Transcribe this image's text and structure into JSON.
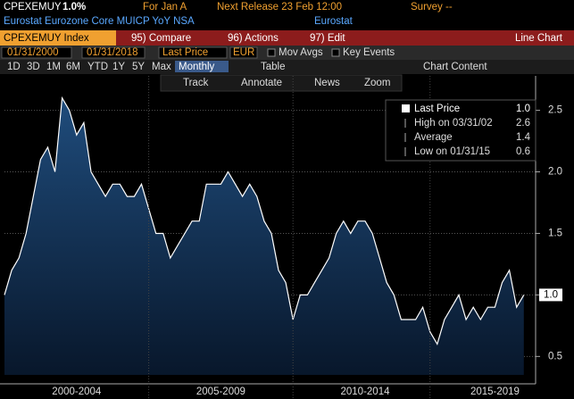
{
  "header": {
    "ticker": "CPEXEMUY",
    "value": "1.0%",
    "period": "For Jan A",
    "next_release": "Next Release 23 Feb 12:00",
    "survey": "Survey --",
    "description": "Eurostat Eurozone Core MUICP YoY NSA",
    "source": "Eurostat"
  },
  "menu": {
    "security": "CPEXEMUY Index",
    "compare": "95) Compare",
    "actions": "96) Actions",
    "edit": "97) Edit",
    "view": "Line Chart"
  },
  "controls": {
    "start": "01/31/2000",
    "end": "01/31/2018",
    "field": "Last Price",
    "currency": "EUR",
    "mov_avgs": "Mov Avgs",
    "key_events": "Key Events",
    "periods": [
      "1D",
      "3D",
      "1M",
      "6M",
      "YTD",
      "1Y",
      "5Y",
      "Max"
    ],
    "frequency": "Monthly",
    "table": "Table",
    "chart_content": "Chart Content"
  },
  "tools": [
    "Track",
    "Annotate",
    "News",
    "Zoom"
  ],
  "chart_data": {
    "type": "area",
    "x": [
      2000,
      2000.25,
      2000.5,
      2000.75,
      2001,
      2001.25,
      2001.5,
      2001.75,
      2002,
      2002.25,
      2002.5,
      2002.75,
      2003,
      2003.25,
      2003.5,
      2003.75,
      2004,
      2004.25,
      2004.5,
      2004.75,
      2005,
      2005.25,
      2005.5,
      2005.75,
      2006,
      2006.25,
      2006.5,
      2006.75,
      2007,
      2007.25,
      2007.5,
      2007.75,
      2008,
      2008.25,
      2008.5,
      2008.75,
      2009,
      2009.25,
      2009.5,
      2009.75,
      2010,
      2010.25,
      2010.5,
      2010.75,
      2011,
      2011.25,
      2011.5,
      2011.75,
      2012,
      2012.25,
      2012.5,
      2012.75,
      2013,
      2013.25,
      2013.5,
      2013.75,
      2014,
      2014.25,
      2014.5,
      2014.75,
      2015,
      2015.25,
      2015.5,
      2015.75,
      2016,
      2016.25,
      2016.5,
      2016.75,
      2017,
      2017.25,
      2017.5,
      2017.75,
      2018
    ],
    "series": [
      {
        "name": "Last Price",
        "color": "#ffffff",
        "values": [
          1.0,
          1.2,
          1.3,
          1.5,
          1.8,
          2.1,
          2.2,
          2.0,
          2.6,
          2.5,
          2.3,
          2.4,
          2.0,
          1.9,
          1.8,
          1.9,
          1.9,
          1.8,
          1.8,
          1.9,
          1.7,
          1.5,
          1.5,
          1.3,
          1.4,
          1.5,
          1.6,
          1.6,
          1.9,
          1.9,
          1.9,
          2.0,
          1.9,
          1.8,
          1.9,
          1.8,
          1.6,
          1.5,
          1.2,
          1.1,
          0.8,
          1.0,
          1.0,
          1.1,
          1.2,
          1.3,
          1.5,
          1.6,
          1.5,
          1.6,
          1.6,
          1.5,
          1.3,
          1.1,
          1.0,
          0.8,
          0.8,
          0.8,
          0.9,
          0.7,
          0.6,
          0.8,
          0.9,
          1.0,
          0.8,
          0.9,
          0.8,
          0.9,
          0.9,
          1.1,
          1.2,
          0.9,
          1.0
        ]
      }
    ],
    "xlim": [
      2000,
      2018.1
    ],
    "ylim": [
      0.35,
      2.78
    ],
    "xticks": [
      {
        "value": 2002.5,
        "label": "2000-2004"
      },
      {
        "value": 2007.5,
        "label": "2005-2009"
      },
      {
        "value": 2012.5,
        "label": "2010-2014"
      },
      {
        "value": 2017,
        "label": "2015-2019"
      }
    ],
    "yticks": [
      0.5,
      {
        "value": 1.0,
        "label": "1.0"
      },
      1.5,
      {
        "value": 2.0,
        "label": "2.0"
      },
      2.5
    ],
    "grid": true,
    "last_value": 1.0,
    "last_value_label": "1.0",
    "legend": {
      "entries": [
        "High on 03/31/02",
        "Average",
        "Low on 01/31/15"
      ],
      "values": [
        2.6,
        1.4,
        0.6
      ],
      "value_labels": [
        "2.6",
        "1.4",
        "0.6"
      ]
    }
  }
}
